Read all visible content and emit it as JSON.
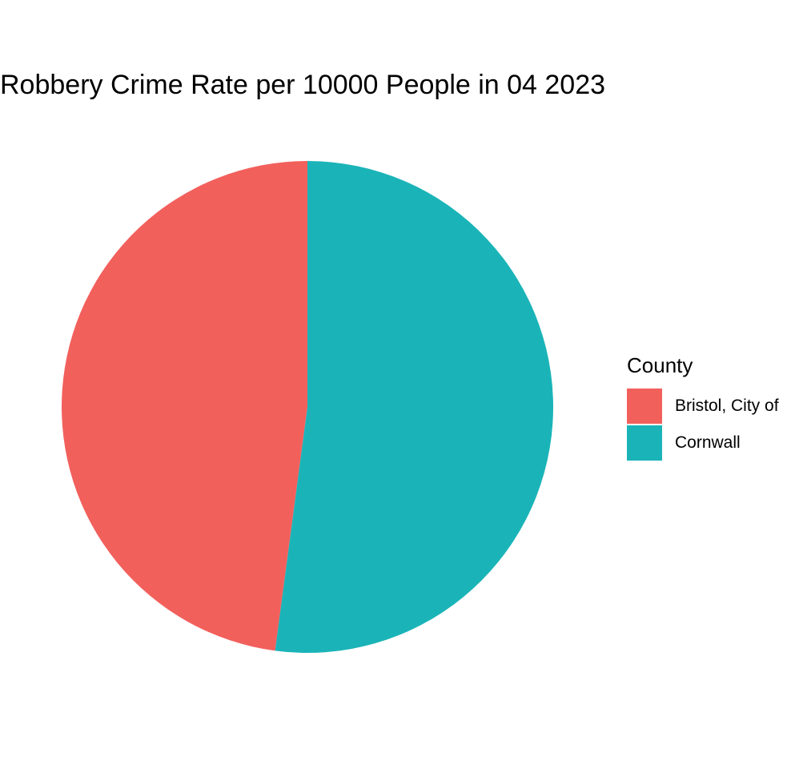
{
  "chart_data": {
    "type": "pie",
    "title": "Robbery Crime Rate per 10000 People in 04 2023",
    "legend": {
      "title": "County",
      "position": "right"
    },
    "categories": [
      "Bristol, City of",
      "Cornwall"
    ],
    "values": [
      47.9,
      52.1
    ],
    "colors": [
      "#F8766D",
      "#00BFC4"
    ],
    "slice_colors_rendered": [
      "#F2605C",
      "#1AB4B8"
    ],
    "direction": "counterclockwise-from-top"
  }
}
